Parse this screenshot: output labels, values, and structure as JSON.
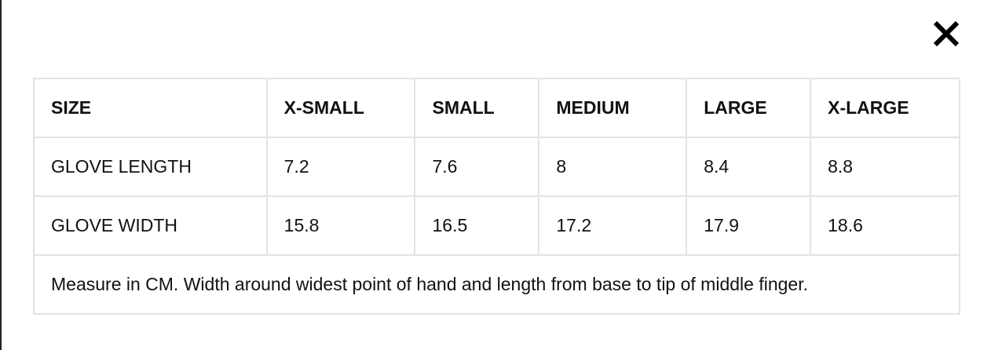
{
  "close_icon": "close-icon",
  "table": {
    "headers": [
      "SIZE",
      "X-SMALL",
      "SMALL",
      "MEDIUM",
      "LARGE",
      "X-LARGE"
    ],
    "rows": [
      [
        "GLOVE LENGTH",
        "7.2",
        "7.6",
        "8",
        "8.4",
        "8.8"
      ],
      [
        "GLOVE WIDTH",
        "15.8",
        "16.5",
        "17.2",
        "17.9",
        "18.6"
      ]
    ],
    "note": "Measure in CM. Width around widest point of hand and length from base to tip of middle finger."
  }
}
